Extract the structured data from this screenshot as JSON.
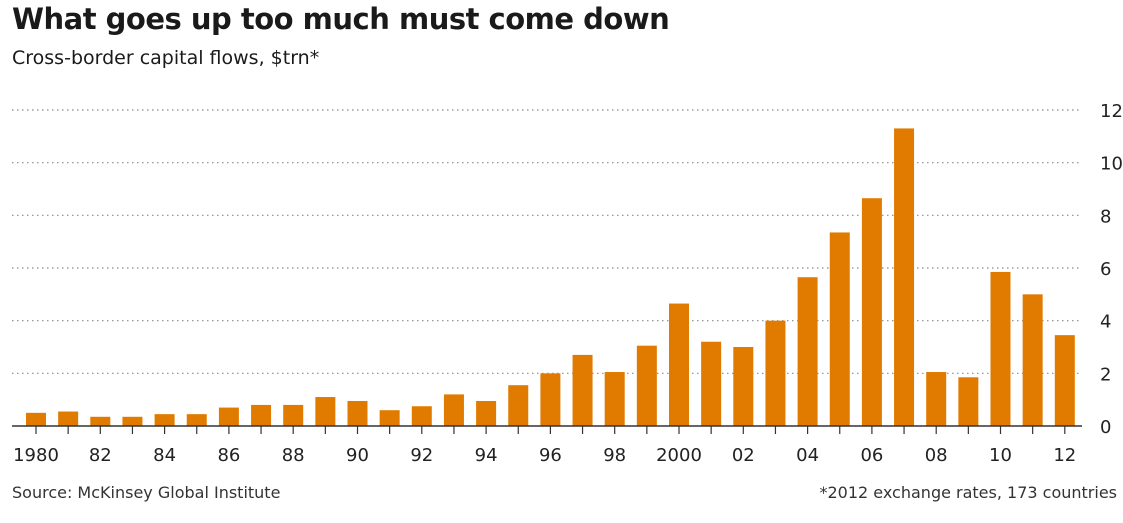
{
  "chart_data": {
    "type": "bar",
    "title": "What goes up too much must come down",
    "subtitle": "Cross-border capital flows, $trn*",
    "categories": [
      "1980",
      "1981",
      "1982",
      "1983",
      "1984",
      "1985",
      "1986",
      "1987",
      "1988",
      "1989",
      "1990",
      "1991",
      "1992",
      "1993",
      "1994",
      "1995",
      "1996",
      "1997",
      "1998",
      "1999",
      "2000",
      "2001",
      "2002",
      "2003",
      "2004",
      "2005",
      "2006",
      "2007",
      "2008",
      "2009",
      "2010",
      "2011",
      "2012"
    ],
    "tick_labels": [
      "1980",
      "",
      "82",
      "",
      "84",
      "",
      "86",
      "",
      "88",
      "",
      "90",
      "",
      "92",
      "",
      "94",
      "",
      "96",
      "",
      "98",
      "",
      "2000",
      "",
      "02",
      "",
      "04",
      "",
      "06",
      "",
      "08",
      "",
      "10",
      "",
      "12"
    ],
    "values": [
      0.5,
      0.55,
      0.35,
      0.35,
      0.45,
      0.45,
      0.7,
      0.8,
      0.8,
      1.1,
      0.95,
      0.6,
      0.75,
      1.2,
      0.95,
      1.55,
      2.0,
      2.7,
      2.05,
      3.05,
      4.65,
      3.2,
      3.0,
      4.0,
      5.65,
      7.35,
      8.65,
      11.3,
      2.05,
      1.85,
      5.85,
      5.0,
      3.45
    ],
    "ylim": [
      0,
      12
    ],
    "yticks": [
      0,
      2,
      4,
      6,
      8,
      10,
      12
    ],
    "y_axis_side": "right",
    "grid": true,
    "bar_color": "#e07b00",
    "source": "Source: McKinsey Global Institute",
    "note": "*2012 exchange rates, 173 countries"
  }
}
